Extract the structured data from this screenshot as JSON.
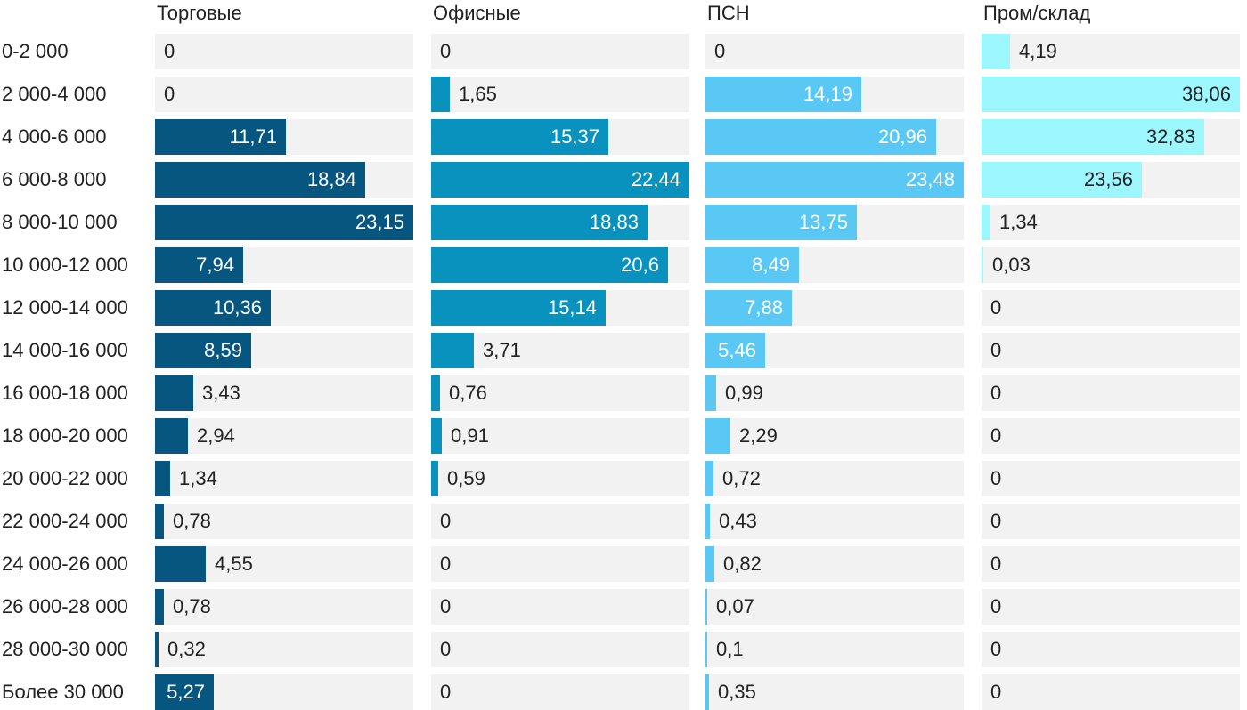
{
  "chart_data": {
    "type": "bar",
    "orientation": "horizontal",
    "layout": "small-multiples",
    "categories": [
      "0-2 000",
      "2 000-4 000",
      "4 000-6 000",
      "6 000-8 000",
      "8 000-10 000",
      "10 000-12 000",
      "12 000-14 000",
      "14 000-16 000",
      "16 000-18 000",
      "18 000-20 000",
      "20 000-22 000",
      "22 000-24 000",
      "24 000-26 000",
      "26 000-28 000",
      "28 000-30 000",
      "Более 30 000"
    ],
    "series": [
      {
        "name": "Торговые",
        "color": "#06567f",
        "values": [
          0,
          0,
          11.71,
          18.84,
          23.15,
          7.94,
          10.36,
          8.59,
          3.43,
          2.94,
          1.34,
          0.78,
          4.55,
          0.78,
          0.32,
          5.27
        ],
        "labels": [
          "0",
          "0",
          "11,71",
          "18,84",
          "23,15",
          "7,94",
          "10,36",
          "8,59",
          "3,43",
          "2,94",
          "1,34",
          "0,78",
          "4,55",
          "0,78",
          "0,32",
          "5,27"
        ],
        "xlim": [
          0,
          23.15
        ]
      },
      {
        "name": "Офисные",
        "color": "#0892bd",
        "values": [
          0,
          1.65,
          15.37,
          22.44,
          18.83,
          20.6,
          15.14,
          3.71,
          0.76,
          0.91,
          0.59,
          0,
          0,
          0,
          0,
          0
        ],
        "labels": [
          "0",
          "1,65",
          "15,37",
          "22,44",
          "18,83",
          "20,6",
          "15,14",
          "3,71",
          "0,76",
          "0,91",
          "0,59",
          "0",
          "0",
          "0",
          "0",
          "0"
        ],
        "xlim": [
          0,
          22.44
        ]
      },
      {
        "name": "ПСН",
        "color": "#5ac8f5",
        "values": [
          0,
          14.19,
          20.96,
          23.48,
          13.75,
          8.49,
          7.88,
          5.46,
          0.99,
          2.29,
          0.72,
          0.43,
          0.82,
          0.07,
          0.1,
          0.35
        ],
        "labels": [
          "0",
          "14,19",
          "20,96",
          "23,48",
          "13,75",
          "8,49",
          "7,88",
          "5,46",
          "0,99",
          "2,29",
          "0,72",
          "0,43",
          "0,82",
          "0,07",
          "0,1",
          "0,35"
        ],
        "xlim": [
          0,
          23.48
        ]
      },
      {
        "name": "Пром/склад",
        "color": "#9cf7ff",
        "values": [
          4.19,
          38.06,
          32.83,
          23.56,
          1.34,
          0.03,
          0,
          0,
          0,
          0,
          0,
          0,
          0,
          0,
          0,
          0
        ],
        "labels": [
          "4,19",
          "38,06",
          "32,83",
          "23,56",
          "1,34",
          "0,03",
          "0",
          "0",
          "0",
          "0",
          "0",
          "0",
          "0",
          "0",
          "0",
          "0"
        ],
        "xlim": [
          0,
          38.06
        ]
      }
    ],
    "grid": false,
    "legend": "none"
  }
}
